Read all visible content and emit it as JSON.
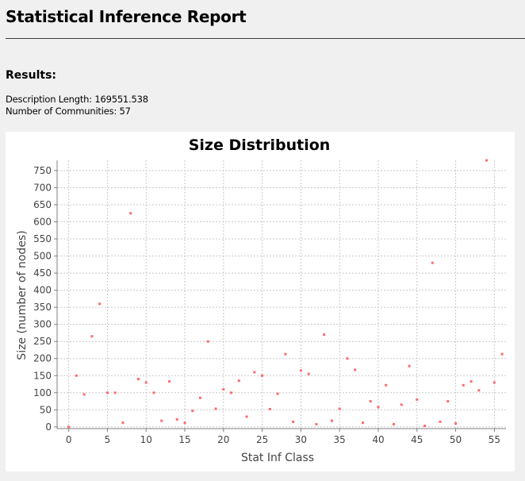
{
  "report": {
    "title": "Statistical Inference Report",
    "results_heading": "Results:",
    "description_length_label": "Description Length: 169551.538",
    "communities_label": "Number of Communities: 57"
  },
  "colors": {
    "point": "#ff6b6b",
    "grid": "#c8c8c8",
    "plot_border": "#808080",
    "page_background": "#f0f0f0"
  },
  "chart_data": {
    "type": "scatter",
    "title": "Size Distribution",
    "xlabel": "Stat Inf Class",
    "ylabel": "Size (number of nodes)",
    "xlim": [
      -1.5,
      56.5
    ],
    "ylim": [
      -5,
      780
    ],
    "xticks": [
      0,
      5,
      10,
      15,
      20,
      25,
      30,
      35,
      40,
      45,
      50,
      55
    ],
    "yticks": [
      0,
      50,
      100,
      150,
      200,
      250,
      300,
      350,
      400,
      450,
      500,
      550,
      600,
      650,
      700,
      750
    ],
    "grid": true,
    "legend": "none",
    "x": [
      0,
      1,
      2,
      3,
      4,
      5,
      6,
      7,
      8,
      9,
      10,
      11,
      12,
      13,
      14,
      15,
      16,
      17,
      18,
      19,
      20,
      21,
      22,
      23,
      24,
      25,
      26,
      27,
      28,
      29,
      30,
      31,
      32,
      33,
      34,
      35,
      36,
      37,
      38,
      39,
      40,
      41,
      42,
      43,
      44,
      45,
      46,
      47,
      48,
      49,
      50,
      51,
      52,
      53,
      54,
      55,
      56
    ],
    "y": [
      0,
      150,
      95,
      265,
      360,
      100,
      100,
      12,
      625,
      140,
      130,
      100,
      18,
      133,
      22,
      12,
      47,
      85,
      250,
      53,
      110,
      100,
      135,
      30,
      160,
      150,
      52,
      97,
      213,
      15,
      165,
      155,
      8,
      270,
      18,
      53,
      200,
      167,
      12,
      75,
      58,
      122,
      8,
      65,
      178,
      80,
      3,
      480,
      15,
      75,
      10,
      122,
      133,
      107,
      780,
      130,
      213
    ]
  }
}
